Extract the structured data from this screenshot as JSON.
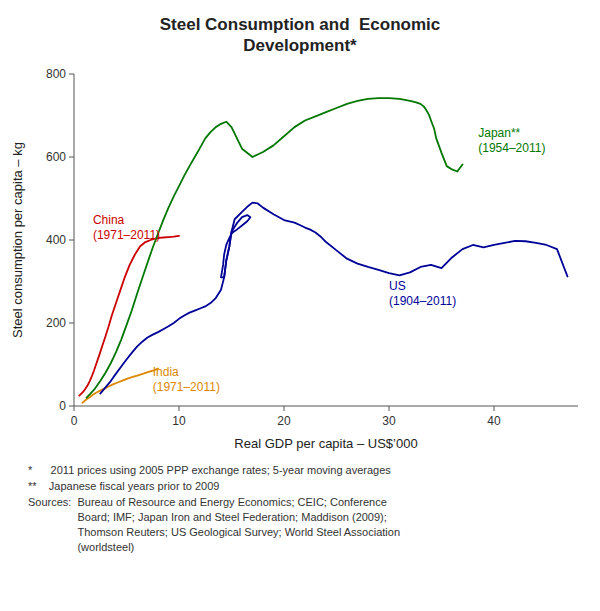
{
  "chart_data": {
    "type": "line",
    "title": "Steel Consumption and  Economic\nDevelopment*",
    "x_label": "Real GDP per capita – US$’000",
    "y_label": "Steel consumption per capita – kg",
    "xlim": [
      0,
      48
    ],
    "ylim": [
      0,
      800
    ],
    "xticks": [
      0,
      10,
      20,
      30,
      40
    ],
    "yticks": [
      0,
      200,
      400,
      600,
      800
    ],
    "grid": false,
    "series": [
      {
        "color": "#cc0000",
        "x": [
          0.5,
          0.7,
          0.9,
          1.1,
          1.3,
          1.5,
          1.7,
          1.9,
          2.1,
          2.4,
          2.7,
          3.0,
          3.3,
          3.6,
          4.0,
          4.4,
          4.8,
          5.3,
          5.8,
          6.3,
          6.8,
          7.3,
          7.7,
          8.1,
          8.5,
          9.0,
          9.5,
          10.0
        ],
        "values": [
          25,
          30,
          35,
          42,
          50,
          60,
          72,
          85,
          100,
          122,
          145,
          168,
          192,
          218,
          248,
          278,
          308,
          340,
          365,
          385,
          395,
          400,
          403,
          405,
          406,
          407,
          408,
          410
        ]
      },
      {
        "color": "#dd8800",
        "x": [
          0.8,
          1.0,
          1.2,
          1.5,
          1.8,
          2.1,
          2.5,
          2.9,
          3.3,
          3.7,
          4.1,
          4.6,
          5.1,
          5.6,
          6.1,
          6.6,
          7.1,
          7.6,
          8.0
        ],
        "values": [
          8,
          12,
          16,
          21,
          27,
          32,
          37,
          42,
          47,
          52,
          56,
          61,
          66,
          70,
          74,
          78,
          82,
          86,
          90
        ]
      },
      {
        "color": "#007700",
        "x": [
          1.2,
          1.5,
          2.0,
          2.5,
          3.0,
          3.5,
          4.0,
          4.5,
          5.0,
          5.5,
          6.0,
          6.5,
          7.0,
          7.5,
          8.0,
          8.5,
          9.0,
          9.5,
          10.0,
          10.5,
          11.0,
          11.5,
          12.0,
          12.5,
          13.0,
          13.5,
          14.0,
          14.5,
          15.0,
          16.0,
          17.0,
          18.0,
          19.0,
          20.0,
          21.0,
          22.0,
          23.0,
          24.0,
          25.0,
          26.0,
          27.0,
          28.0,
          29.0,
          30.0,
          31.0,
          32.0,
          32.5,
          33.0,
          33.3,
          33.5,
          33.8,
          34.0,
          34.3,
          34.5,
          35.0,
          35.5,
          36.0,
          36.5,
          37.0
        ],
        "values": [
          20,
          28,
          42,
          60,
          80,
          103,
          130,
          160,
          195,
          230,
          270,
          308,
          345,
          382,
          415,
          448,
          478,
          505,
          530,
          555,
          578,
          600,
          622,
          645,
          660,
          672,
          680,
          685,
          672,
          620,
          600,
          612,
          628,
          650,
          672,
          688,
          698,
          708,
          718,
          728,
          735,
          740,
          742,
          742,
          740,
          735,
          732,
          728,
          722,
          715,
          702,
          688,
          668,
          645,
          610,
          578,
          570,
          565,
          582
        ]
      },
      {
        "color": "#000099",
        "x": [
          2.5,
          3.0,
          3.5,
          4.0,
          4.5,
          5.0,
          5.5,
          6.0,
          6.5,
          7.0,
          7.5,
          8.0,
          8.5,
          9.0,
          9.5,
          10.0,
          10.5,
          11.0,
          11.5,
          12.0,
          12.5,
          13.0,
          13.5,
          14.0,
          14.3,
          14.5,
          14.8,
          15.0,
          15.3,
          16.0,
          16.5,
          17.0,
          17.5,
          18.0,
          19.0,
          20.0,
          21.0,
          21.5,
          22.0,
          22.5,
          23.0,
          23.5,
          24.0,
          25.0,
          26.0,
          27.0,
          28.0,
          29.0,
          30.0,
          31.0,
          32.0,
          33.0,
          34.0,
          35.0,
          36.0,
          37.0,
          38.0,
          39.0,
          40.0,
          41.0,
          42.0,
          43.0,
          44.0,
          45.0,
          46.0,
          47.0
        ],
        "values": [
          30,
          45,
          60,
          78,
          95,
          112,
          128,
          143,
          155,
          165,
          172,
          178,
          185,
          192,
          200,
          210,
          218,
          225,
          230,
          235,
          240,
          248,
          260,
          280,
          310,
          350,
          385,
          420,
          450,
          468,
          480,
          490,
          488,
          478,
          462,
          448,
          442,
          436,
          430,
          425,
          418,
          408,
          395,
          375,
          355,
          343,
          335,
          328,
          320,
          315,
          322,
          335,
          340,
          332,
          358,
          378,
          388,
          382,
          388,
          393,
          398,
          397,
          393,
          388,
          378,
          312
        ]
      },
      {
        "color": "#000099",
        "x": [
          14.3,
          14.5,
          14.8,
          15.0,
          15.5,
          16.0,
          16.5,
          16.8,
          16.5,
          16.0,
          15.5,
          15.2,
          15.0,
          14.8,
          14.5,
          14.3,
          14.2,
          14.0,
          14.3
        ],
        "values": [
          310,
          350,
          385,
          420,
          440,
          455,
          460,
          455,
          445,
          435,
          425,
          420,
          415,
          405,
          388,
          365,
          340,
          310,
          310
        ]
      }
    ],
    "annotations": [
      {
        "text": "China\n(1971–2011)",
        "x": 1.8,
        "y": 430,
        "color": "#cc0000"
      },
      {
        "text": "India\n(1971–2011)",
        "x": 7.5,
        "y": 65,
        "color": "#dd8800"
      },
      {
        "text": "Japan**\n(1954–2011)",
        "x": 38.5,
        "y": 640,
        "color": "#007700"
      },
      {
        "text": "US\n(1904–2011)",
        "x": 30,
        "y": 270,
        "color": "#000099"
      }
    ],
    "footnotes": [
      "*      2011 prices using 2005 PPP exchange rates; 5-year moving averages",
      "**    Japanese fiscal years prior to 2009"
    ],
    "sources_label": "Sources:",
    "sources_text": "  Bureau of Resource and Energy Economics; CEIC; Conference\n           Board; IMF; Japan Iron and Steel Federation; Maddison (2009);\n           Thomson Reuters; US Geological Survey; World Steel Association\n           (worldsteel)"
  }
}
